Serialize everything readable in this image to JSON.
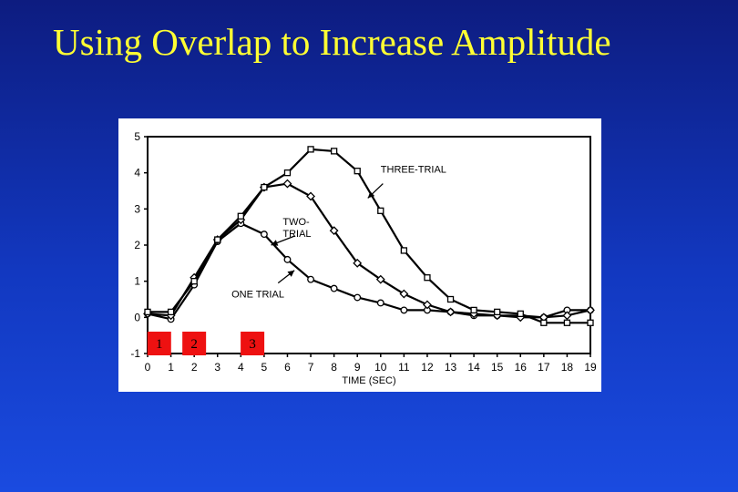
{
  "slide": {
    "title": "Using Overlap to Increase Amplitude"
  },
  "chart_data": {
    "type": "line",
    "title": "",
    "xlabel": "TIME (SEC)",
    "ylabel": "",
    "xlim": [
      0,
      19
    ],
    "ylim": [
      -1,
      5
    ],
    "x_ticks": [
      0,
      1,
      2,
      3,
      4,
      5,
      6,
      7,
      8,
      9,
      10,
      11,
      12,
      13,
      14,
      15,
      16,
      17,
      18,
      19
    ],
    "y_ticks": [
      -1,
      0,
      1,
      2,
      3,
      4,
      5
    ],
    "grid": false,
    "series": [
      {
        "name": "ONE TRIAL",
        "marker": "circle",
        "x": [
          0,
          1,
          2,
          3,
          4,
          5,
          6,
          7,
          8,
          9,
          10,
          11,
          12,
          13,
          14,
          15,
          16,
          17,
          18,
          19
        ],
        "y": [
          0.1,
          -0.05,
          0.9,
          2.1,
          2.6,
          2.3,
          1.6,
          1.05,
          0.8,
          0.55,
          0.4,
          0.2,
          0.2,
          0.15,
          0.05,
          0.05,
          0.05,
          0.0,
          0.2,
          0.2
        ]
      },
      {
        "name": "TWO-TRIAL",
        "marker": "diamond",
        "x": [
          0,
          1,
          2,
          3,
          4,
          5,
          6,
          7,
          8,
          9,
          10,
          11,
          12,
          13,
          14,
          15,
          16,
          17,
          18,
          19
        ],
        "y": [
          0.1,
          0.05,
          1.1,
          2.15,
          2.7,
          3.6,
          3.7,
          3.35,
          2.4,
          1.5,
          1.05,
          0.65,
          0.35,
          0.15,
          0.1,
          0.05,
          0.0,
          0.0,
          0.05,
          0.2
        ]
      },
      {
        "name": "THREE-TRIAL",
        "marker": "square",
        "x": [
          0,
          1,
          2,
          3,
          4,
          5,
          6,
          7,
          8,
          9,
          10,
          11,
          12,
          13,
          14,
          15,
          16,
          17,
          18,
          19
        ],
        "y": [
          0.15,
          0.15,
          1.0,
          2.15,
          2.8,
          3.6,
          4.0,
          4.65,
          4.6,
          4.05,
          2.95,
          1.85,
          1.1,
          0.5,
          0.2,
          0.15,
          0.1,
          -0.15,
          -0.15,
          -0.15
        ]
      }
    ],
    "annotations": [
      {
        "lines": [
          "THREE-TRIAL"
        ],
        "series": "THREE-TRIAL"
      },
      {
        "lines": [
          "TWO-",
          "TRIAL"
        ],
        "series": "TWO-TRIAL"
      },
      {
        "lines": [
          "ONE TRIAL"
        ],
        "series": "ONE TRIAL"
      }
    ],
    "trial_markers": [
      {
        "label": "1",
        "x": 0.5
      },
      {
        "label": "2",
        "x": 2.0
      },
      {
        "label": "3",
        "x": 4.5
      }
    ]
  }
}
